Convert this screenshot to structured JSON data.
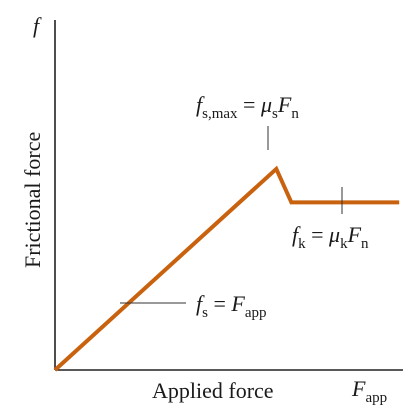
{
  "chart_data": {
    "type": "line",
    "title": "",
    "xlabel": "Applied force",
    "ylabel": "Frictional force",
    "x_axis_symbol": {
      "main": "F",
      "sub": "app"
    },
    "y_axis_symbol": "f",
    "series": [
      {
        "points": [
          {
            "x": 0,
            "y": 0
          },
          {
            "x": 5.85,
            "y": 5.4
          },
          {
            "x": 6.25,
            "y": 4.5
          },
          {
            "x": 9.1,
            "y": 4.5
          }
        ]
      }
    ],
    "xlim": [
      0,
      9.2
    ],
    "ylim": [
      0,
      9.4
    ],
    "grid": false,
    "line_color": "#c8620e",
    "annotations": {
      "static_max": {
        "lhs_main": "f",
        "lhs_sub": "s,max",
        "eq": " = ",
        "mu": "μ",
        "mu_sub": "s",
        "rhs_main": "F",
        "rhs_sub": "n"
      },
      "kinetic": {
        "lhs_main": "f",
        "lhs_sub": "k",
        "eq": " = ",
        "mu": "μ",
        "mu_sub": "k",
        "rhs_main": "F",
        "rhs_sub": "n"
      },
      "static": {
        "lhs_main": "f",
        "lhs_sub": "s",
        "eq": " = ",
        "rhs_main": "F",
        "rhs_sub": "app"
      }
    }
  }
}
